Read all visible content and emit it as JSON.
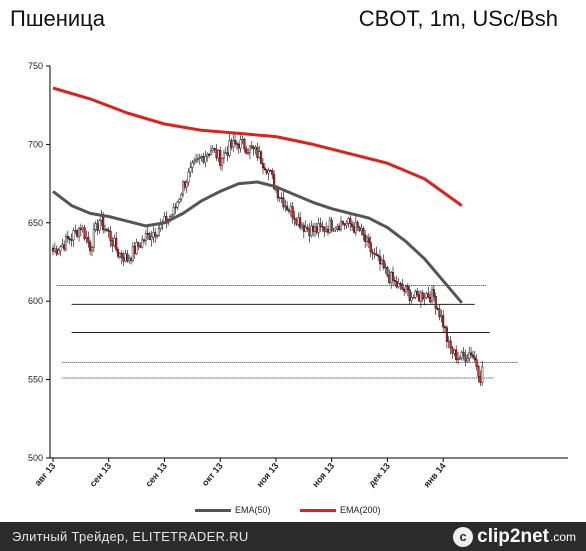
{
  "header": {
    "instrument": "Пшеница",
    "contract": "CBOT, 1m, USc/Bsh"
  },
  "legend": [
    {
      "label": "EMA(50)",
      "color": "#555555"
    },
    {
      "label": "EMA(200)",
      "color": "#e0201b"
    }
  ],
  "footer": {
    "text": "Элитный Трейдер, ELITETRADER.RU",
    "brand": "clip2net",
    "brand_icon_char": "c",
    "brand_tld": ".com"
  },
  "chart_data": {
    "type": "candlestick",
    "title": "Пшеница",
    "subtitle": "CBOT, 1m, USc/Bsh",
    "xlabel": "",
    "ylabel": "",
    "ylim": [
      500,
      750
    ],
    "yticks": [
      500,
      550,
      600,
      650,
      700,
      750
    ],
    "grid": false,
    "legend_position": "bottom",
    "x_tick_labels": [
      "авг 13",
      "сен 13",
      "сен 13",
      "окт 13",
      "ноя 13",
      "ноя 13",
      "дек 13",
      "янв 14"
    ],
    "x_tick_index": [
      0,
      30,
      60,
      90,
      120,
      150,
      180,
      210
    ],
    "num_bars": 232,
    "up_color": "#f4f4f4",
    "down_color": "#d62020",
    "close_anchors": [
      [
        0,
        632
      ],
      [
        5,
        636
      ],
      [
        10,
        641
      ],
      [
        15,
        648
      ],
      [
        20,
        635
      ],
      [
        25,
        652
      ],
      [
        30,
        643
      ],
      [
        35,
        631
      ],
      [
        40,
        627
      ],
      [
        45,
        634
      ],
      [
        50,
        641
      ],
      [
        55,
        645
      ],
      [
        60,
        650
      ],
      [
        65,
        657
      ],
      [
        70,
        674
      ],
      [
        75,
        684
      ],
      [
        80,
        692
      ],
      [
        85,
        697
      ],
      [
        90,
        691
      ],
      [
        95,
        698
      ],
      [
        100,
        701
      ],
      [
        105,
        698
      ],
      [
        110,
        694
      ],
      [
        115,
        686
      ],
      [
        120,
        672
      ],
      [
        125,
        662
      ],
      [
        130,
        655
      ],
      [
        135,
        648
      ],
      [
        140,
        645
      ],
      [
        145,
        646
      ],
      [
        150,
        649
      ],
      [
        155,
        650
      ],
      [
        160,
        649
      ],
      [
        165,
        645
      ],
      [
        170,
        634
      ],
      [
        175,
        625
      ],
      [
        180,
        617
      ],
      [
        185,
        610
      ],
      [
        190,
        606
      ],
      [
        195,
        602
      ],
      [
        200,
        605
      ],
      [
        205,
        603
      ],
      [
        210,
        586
      ],
      [
        213,
        571
      ],
      [
        216,
        566
      ],
      [
        220,
        564
      ],
      [
        225,
        568
      ],
      [
        228,
        560
      ],
      [
        230,
        552
      ],
      [
        231,
        556
      ]
    ],
    "series": [
      {
        "name": "EMA(50)",
        "color": "#555555",
        "x": [
          0,
          10,
          20,
          30,
          40,
          50,
          60,
          70,
          80,
          90,
          100,
          110,
          120,
          130,
          140,
          150,
          160,
          170,
          180,
          190,
          200,
          210,
          220
        ],
        "values": [
          670,
          661,
          656,
          654,
          651,
          648,
          650,
          656,
          664,
          670,
          675,
          676,
          673,
          668,
          663,
          659,
          656,
          653,
          647,
          638,
          627,
          613,
          599
        ]
      },
      {
        "name": "EMA(200)",
        "color": "#e0201b",
        "x": [
          0,
          20,
          40,
          60,
          80,
          100,
          120,
          140,
          160,
          180,
          200,
          220
        ],
        "values": [
          736,
          729,
          720,
          713,
          709,
          707,
          705,
          700,
          694,
          688,
          678,
          661
        ]
      }
    ],
    "horizontal_levels": [
      {
        "value": 610,
        "x_start": 2,
        "x_end": 233,
        "style": "dotted"
      },
      {
        "value": 598,
        "x_start": 10,
        "x_end": 227,
        "style": "solid"
      },
      {
        "value": 580,
        "x_start": 10,
        "x_end": 235,
        "style": "solid"
      },
      {
        "value": 561,
        "x_start": 5,
        "x_end": 250,
        "style": "dotted"
      },
      {
        "value": 551,
        "x_start": 5,
        "x_end": 237,
        "style": "dotted"
      }
    ]
  }
}
